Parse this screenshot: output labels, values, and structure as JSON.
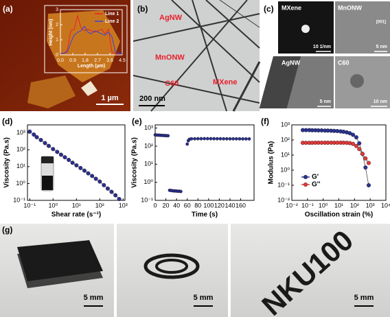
{
  "panel_labels": [
    "(a)",
    "(b)",
    "(c)",
    "(d)",
    "(e)",
    "(f)",
    "(g)"
  ],
  "images": {
    "a": {
      "scale_bar": "1 µm"
    },
    "b": {
      "labels": [
        "AgNW",
        "MnONW",
        "C60",
        "MXene"
      ],
      "scale_bar": "200 nm"
    },
    "c": {
      "tiles": [
        {
          "label": "MXene",
          "scale_bar": "10 1/nm"
        },
        {
          "label": "MnONW",
          "scale_bar": "5 nm",
          "direction": "[001]"
        },
        {
          "label": "AgNW",
          "scale_bar": "5 nm"
        },
        {
          "label": "C60",
          "scale_bar": "10 nm"
        }
      ]
    },
    "g": {
      "scale_bars": [
        "5 mm",
        "5 mm",
        "5 mm"
      ],
      "text": "NKU100"
    }
  },
  "chart_data": [
    {
      "type": "line",
      "xlabel": "Length (µm)",
      "ylabel": "Height (nm)",
      "axis_color": "#ffffff",
      "legend": "upper right",
      "x": [
        0,
        0.25,
        0.5,
        0.75,
        1,
        1.25,
        1.5,
        1.75,
        2,
        2.25,
        2.5,
        2.75,
        3,
        3.25,
        3.5,
        3.75,
        4,
        4.25,
        4.5
      ],
      "series": [
        {
          "name": "Line 1",
          "color": "#e8202a",
          "values": [
            0.1,
            0.1,
            0.3,
            1.6,
            1.7,
            2.6,
            1.8,
            1.6,
            1.7,
            1.6,
            1.5,
            1.6,
            1.7,
            1.4,
            1.7,
            0.2,
            0.1,
            0.1,
            0.1
          ]
        },
        {
          "name": "Line 2",
          "color": "#3344e0",
          "values": [
            0.1,
            0.1,
            0.2,
            0.8,
            1.3,
            1.5,
            1.6,
            1.9,
            1.5,
            1.4,
            1.6,
            1.5,
            1.4,
            1.3,
            1.5,
            1.2,
            0.2,
            0.1,
            0.1
          ]
        }
      ],
      "xlim": [
        0,
        4.5
      ],
      "ylim": [
        0,
        3
      ],
      "xticks": [
        {
          "value": 0,
          "label": "0.0"
        },
        0.9,
        1.8,
        2.7,
        3.6,
        4.5
      ],
      "yticks": [
        0,
        1,
        2,
        3
      ]
    },
    {
      "type": "line",
      "markers": true,
      "xscale": "log",
      "yscale": "log",
      "xlabel": "Shear rate (s⁻¹)",
      "ylabel": "Viscosity (Pa.s)",
      "axis_color": "#000000",
      "x": [
        0.1,
        0.15,
        0.2,
        0.3,
        0.45,
        0.65,
        1,
        1.5,
        2.2,
        3.2,
        4.7,
        6.8,
        10,
        15,
        22,
        32,
        47,
        68,
        100,
        150,
        220,
        320,
        470,
        680
      ],
      "series": [
        {
          "name": null,
          "color": "#2b2f8f",
          "values": [
            1200,
            800,
            560,
            380,
            250,
            170,
            110,
            75,
            51,
            36,
            25,
            17,
            12,
            8.3,
            5.8,
            4,
            2.8,
            1.9,
            1.3,
            0.8,
            0.5,
            0.32,
            0.2,
            0.12
          ]
        }
      ],
      "xlim": [
        0.08,
        1200
      ],
      "ylim": [
        0.1,
        3000
      ],
      "xticks": [
        {
          "value": 0.1,
          "label": "10⁻¹"
        },
        {
          "value": 1,
          "label": "10⁰"
        },
        {
          "value": 10,
          "label": "10¹"
        },
        {
          "value": 100,
          "label": "10²"
        },
        {
          "value": 1000,
          "label": "10³"
        }
      ],
      "yticks": [
        {
          "value": 0.1,
          "label": "10⁻¹"
        },
        {
          "value": 1,
          "label": "10⁰"
        },
        {
          "value": 10,
          "label": "10¹"
        },
        {
          "value": 100,
          "label": "10²"
        },
        {
          "value": 1000,
          "label": "10³"
        }
      ]
    },
    {
      "type": "scatter",
      "yscale": "log",
      "xlabel": "Time (s)",
      "ylabel": "Viscosity (Pa.s)",
      "axis_color": "#000000",
      "x": [
        0,
        3,
        6,
        9,
        12,
        15,
        18,
        21,
        24,
        27,
        30,
        33,
        36,
        39,
        42,
        45,
        48,
        60,
        62,
        64,
        68,
        74,
        80,
        86,
        92,
        98,
        104,
        110,
        116,
        122,
        128,
        134,
        140,
        146,
        152,
        158,
        164,
        170,
        176
      ],
      "series": [
        {
          "name": null,
          "color": "#2b2f8f",
          "values": [
            420,
            410,
            405,
            400,
            395,
            390,
            385,
            380,
            375,
            0.36,
            0.35,
            0.34,
            0.33,
            0.33,
            0.32,
            0.32,
            0.31,
            130,
            200,
            240,
            255,
            255,
            258,
            258,
            260,
            260,
            258,
            258,
            256,
            256,
            255,
            255,
            254,
            254,
            253,
            253,
            252,
            252,
            252
          ]
        }
      ],
      "xlim": [
        0,
        185
      ],
      "ylim": [
        0.1,
        1500
      ],
      "xticks": [
        0,
        20,
        40,
        60,
        80,
        100,
        120,
        140,
        160
      ],
      "yticks": [
        {
          "value": 0.1,
          "label": "10⁻¹"
        },
        {
          "value": 1,
          "label": "10⁰"
        },
        {
          "value": 10,
          "label": "10¹"
        },
        {
          "value": 100,
          "label": "10²"
        },
        {
          "value": 1000,
          "label": "10³"
        }
      ]
    },
    {
      "type": "line",
      "markers": true,
      "xscale": "log",
      "yscale": "log",
      "xlabel": "Oscillation strain (%)",
      "ylabel": "Modulus (Pa)",
      "axis_color": "#000000",
      "legend": "lower left",
      "x": [
        0.05,
        0.08,
        0.13,
        0.2,
        0.32,
        0.5,
        0.8,
        1.3,
        2,
        3.2,
        5,
        8,
        13,
        20,
        32,
        50,
        80,
        130,
        200,
        320,
        500,
        800
      ],
      "series": [
        {
          "name": "G'",
          "color": "#2b3290",
          "values": [
            450,
            450,
            450,
            440,
            440,
            430,
            430,
            420,
            420,
            410,
            400,
            390,
            370,
            350,
            320,
            280,
            220,
            150,
            60,
            12,
            1.5,
            0.1
          ]
        },
        {
          "name": "G''",
          "color": "#e23b3b",
          "values": [
            65,
            65,
            65,
            65,
            66,
            66,
            66,
            66,
            66,
            66,
            66,
            66,
            66,
            66,
            65,
            62,
            55,
            40,
            25,
            12,
            6,
            3
          ]
        }
      ],
      "xlim": [
        0.01,
        10000
      ],
      "ylim": [
        0.01,
        1000
      ],
      "xticks": [
        {
          "value": 0.01,
          "label": "10⁻²"
        },
        {
          "value": 0.1,
          "label": "10⁻¹"
        },
        {
          "value": 1,
          "label": "10⁰"
        },
        {
          "value": 10,
          "label": "10¹"
        },
        {
          "value": 100,
          "label": "10²"
        },
        {
          "value": 1000,
          "label": "10³"
        },
        {
          "value": 10000,
          "label": "10⁴"
        }
      ],
      "yticks": [
        {
          "value": 0.01,
          "label": "10⁻²"
        },
        {
          "value": 0.1,
          "label": "10⁻¹"
        },
        {
          "value": 1,
          "label": "10⁰"
        },
        {
          "value": 10,
          "label": "10¹"
        },
        {
          "value": 100,
          "label": "10²"
        },
        {
          "value": 1000,
          "label": "10³"
        }
      ]
    }
  ]
}
